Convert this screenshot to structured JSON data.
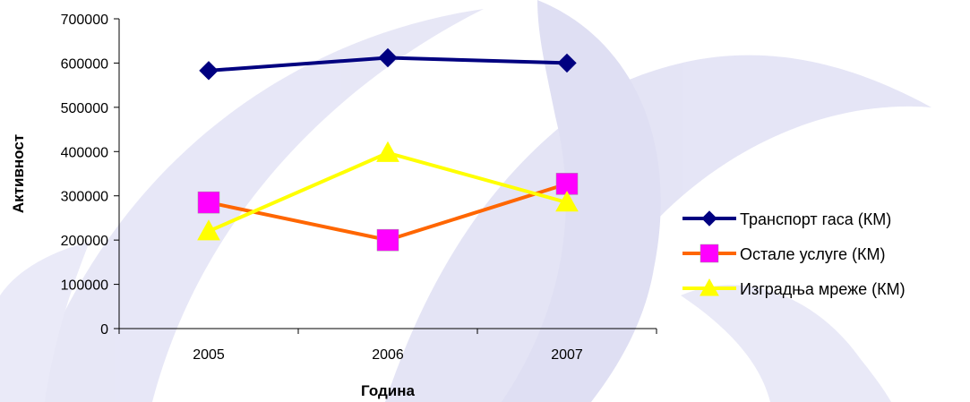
{
  "chart_data": {
    "type": "line",
    "title": "",
    "xlabel": "Година",
    "ylabel": "Активност",
    "categories": [
      "2005",
      "2006",
      "2007"
    ],
    "ylim": [
      0,
      700000
    ],
    "yticks": [
      "0",
      "100000",
      "200000",
      "300000",
      "400000",
      "500000",
      "600000",
      "700000"
    ],
    "grid": false,
    "legend_position": "right",
    "series": [
      {
        "name": "Транспорт гаса (КМ)",
        "values": [
          583000,
          612000,
          600000
        ],
        "color": "#000080",
        "marker": "diamond"
      },
      {
        "name": "Остале услуге (КМ)",
        "values": [
          285000,
          200000,
          327000
        ],
        "color": "#FF6600",
        "marker": "square",
        "marker_color": "#FF00FF"
      },
      {
        "name": "Изградња мреже (КМ)",
        "values": [
          220000,
          397000,
          285000
        ],
        "color": "#FFFF00",
        "marker": "triangle"
      }
    ]
  },
  "colors": {
    "background_watermark": "#C9C9EC"
  }
}
